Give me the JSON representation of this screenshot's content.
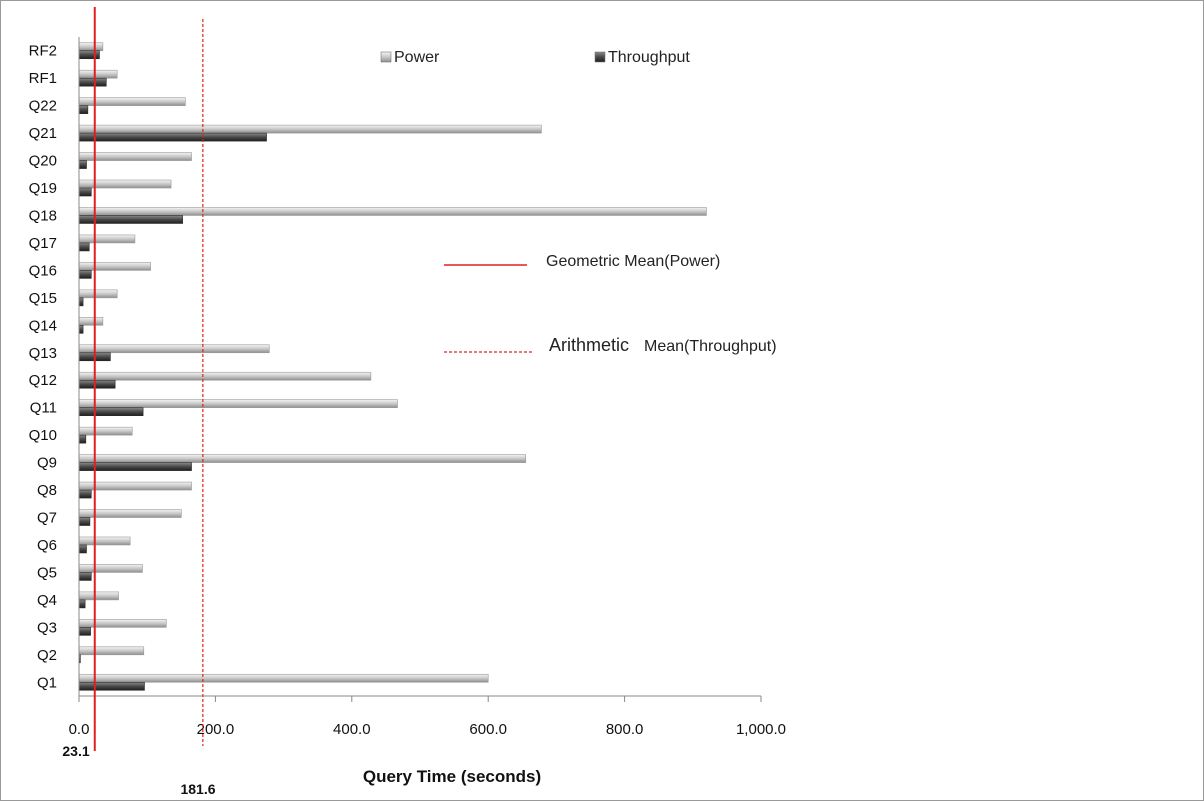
{
  "chart_data": {
    "type": "bar",
    "orientation": "horizontal",
    "xlabel": "Query Time (seconds)",
    "xlim": [
      0,
      1000
    ],
    "x_ticks": [
      "0.0",
      "200.0",
      "400.0",
      "600.0",
      "800.0",
      "1,000.0"
    ],
    "categories": [
      "Q1",
      "Q2",
      "Q3",
      "Q4",
      "Q5",
      "Q6",
      "Q7",
      "Q8",
      "Q9",
      "Q10",
      "Q11",
      "Q12",
      "Q13",
      "Q14",
      "Q15",
      "Q16",
      "Q17",
      "Q18",
      "Q19",
      "Q20",
      "Q21",
      "Q22",
      "RF1",
      "RF2"
    ],
    "series": [
      {
        "name": "Power",
        "color": "#b3b3b3",
        "values": [
          600,
          95,
          128,
          58,
          93,
          75,
          150,
          165,
          655,
          78,
          467,
          428,
          279,
          35,
          56,
          105,
          82,
          920,
          135,
          165,
          678,
          156,
          56,
          35
        ]
      },
      {
        "name": "Throughput",
        "color": "#4a4a4a",
        "values": [
          96,
          2,
          17,
          9,
          18,
          11,
          16,
          18,
          165,
          10,
          94,
          53,
          46,
          6,
          6,
          18,
          15,
          152,
          18,
          11,
          275,
          13,
          40,
          30
        ]
      }
    ],
    "reference_lines": [
      {
        "name": "Geometric Mean(Power)",
        "value": 23.1,
        "value_label": "23.1",
        "style": "solid",
        "color": "#e02020"
      },
      {
        "name": "Arithmetic Mean(Throughput)",
        "value": 181.6,
        "value_label": "181.6",
        "style": "dashed",
        "color": "#e02020"
      }
    ],
    "legend": [
      {
        "label": "Power",
        "color": "#b3b3b3"
      },
      {
        "label": "Throughput",
        "color": "#4a4a4a"
      }
    ],
    "ref_legend": {
      "geo_prefix": "Geometric Mean(Power)",
      "arith_word": "Arithmetic",
      "arith_rest": "Mean(Throughput)"
    },
    "legend_placement": "top-center",
    "grid": false
  }
}
